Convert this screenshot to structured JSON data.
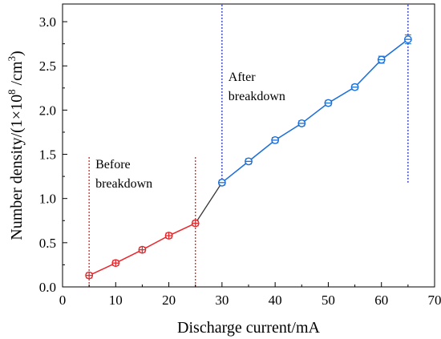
{
  "chart_data": {
    "type": "line",
    "xlabel": "Discharge current/mA",
    "ylabel_parts": {
      "prefix": "Number density/(1×10",
      "exp1": "8",
      "mid": " /cm",
      "exp2": "3",
      "suffix": ")"
    },
    "xlim": [
      0,
      70
    ],
    "ylim": [
      0,
      3.2
    ],
    "xticks": [
      0,
      10,
      20,
      30,
      40,
      50,
      60,
      70
    ],
    "yticks": [
      0.0,
      0.5,
      1.0,
      1.5,
      2.0,
      2.5,
      3.0
    ],
    "ytick_labels": [
      "0.0",
      "0.5",
      "1.0",
      "1.5",
      "2.0",
      "2.5",
      "3.0"
    ],
    "grid": false,
    "series": [
      {
        "color": "#e8262b",
        "marker": "circle-plus",
        "x": [
          5,
          10,
          15,
          20,
          25
        ],
        "y": [
          0.13,
          0.27,
          0.42,
          0.58,
          0.72
        ],
        "err": [
          0.03,
          0.03,
          0.03,
          0.03,
          0.03
        ]
      },
      {
        "color": "#1a6fd8",
        "marker": "circle-bar",
        "x": [
          30,
          35,
          40,
          45,
          50,
          55,
          60,
          65
        ],
        "y": [
          1.18,
          1.42,
          1.66,
          1.85,
          2.08,
          2.26,
          2.57,
          2.8
        ],
        "err": [
          0.03,
          0.03,
          0.03,
          0.03,
          0.03,
          0.03,
          0.04,
          0.05
        ]
      }
    ],
    "connector": {
      "color": "#333333",
      "from": [
        25,
        0.72
      ],
      "to": [
        30,
        1.18
      ]
    },
    "guides": [
      {
        "x": 5,
        "y_from": 0,
        "y_to": 1.48,
        "color": "#d62728",
        "style": "dotted"
      },
      {
        "x": 25,
        "y_from": 0,
        "y_to": 1.48,
        "color": "#d62728",
        "style": "dotted"
      },
      {
        "x": 30,
        "y_from": 1.18,
        "y_to": 3.2,
        "color": "#1f2fb8",
        "style": "dotted"
      },
      {
        "x": 65,
        "y_from": 1.18,
        "y_to": 3.2,
        "color": "#1f2fb8",
        "style": "dotted"
      }
    ],
    "annotations": [
      {
        "lines": [
          "Before",
          "breakdown"
        ],
        "x": 6.2,
        "y": 1.34
      },
      {
        "lines": [
          "After",
          "breakdown"
        ],
        "x": 31.2,
        "y": 2.33
      }
    ]
  }
}
